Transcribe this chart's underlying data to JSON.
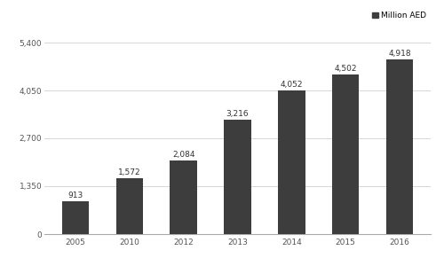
{
  "categories": [
    "2005",
    "2010",
    "2012",
    "2013",
    "2014",
    "2015",
    "2016"
  ],
  "values": [
    913,
    1572,
    2084,
    3216,
    4052,
    4502,
    4918
  ],
  "bar_color": "#3d3d3d",
  "bar_labels": [
    "913",
    "1,572",
    "2,084",
    "3,216",
    "4,052",
    "4,502",
    "4,918"
  ],
  "yticks": [
    0,
    1350,
    2700,
    4050,
    5400
  ],
  "ytick_labels": [
    "0",
    "1,350",
    "2,700",
    "4,050",
    "5,400"
  ],
  "ylim": [
    0,
    5700
  ],
  "legend_label": "Million AED",
  "background_color": "#ffffff",
  "grid_color": "#d0d0d0",
  "label_fontsize": 6.5,
  "tick_fontsize": 6.5,
  "legend_fontsize": 6.5,
  "bar_width": 0.5
}
